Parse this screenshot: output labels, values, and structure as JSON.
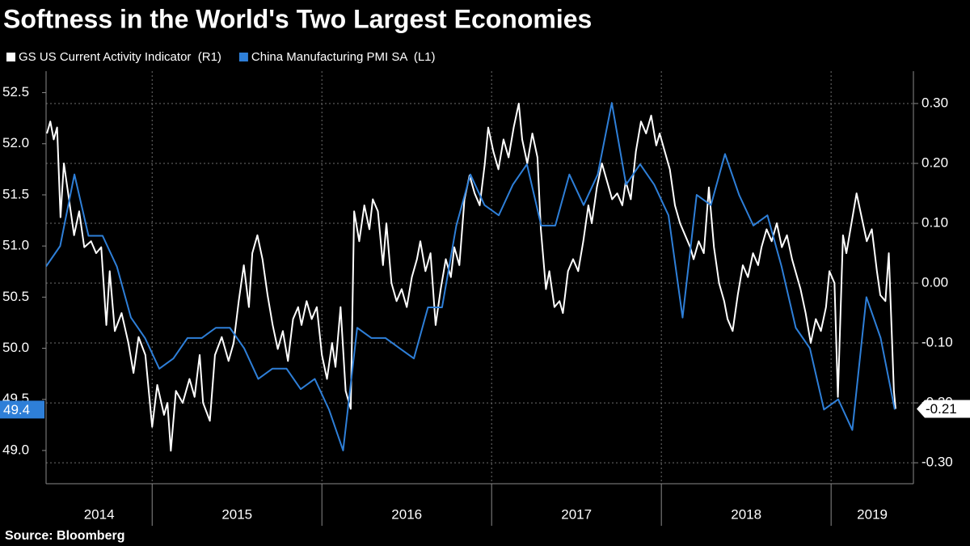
{
  "chart_data": {
    "type": "line",
    "title": "Softness in the World's Two Largest Economies",
    "source": "Source: Bloomberg",
    "xlim": [
      2014.375,
      2019.485
    ],
    "xticks": [
      2014,
      2015,
      2016,
      2017,
      2018,
      2019
    ],
    "ylim": [
      48.675,
      52.71
    ],
    "yticks": [
      {
        "value": 49,
        "label": "49.0"
      },
      49.5,
      {
        "value": 50,
        "label": "50.0"
      },
      50.5,
      {
        "value": 51,
        "label": "51.0"
      },
      51.5,
      {
        "value": 52,
        "label": "52.0"
      },
      52.5
    ],
    "y2lim": [
      -0.335,
      0.354
    ],
    "y2ticks": [
      {
        "value": -0.3,
        "label": "-0.30"
      },
      {
        "value": -0.2,
        "label": "-0.20"
      },
      {
        "value": -0.1,
        "label": "-0.10"
      },
      {
        "value": 0,
        "label": "0.00"
      },
      {
        "value": 0.1,
        "label": "0.10"
      },
      {
        "value": 0.2,
        "label": "0.20"
      },
      {
        "value": 0.3,
        "label": "0.30"
      }
    ],
    "grid": true,
    "series": [
      {
        "name": "GS US Current Activity Indicator  (R1)",
        "color": "#ffffff",
        "axis": "y2",
        "x": [
          2014.38,
          2014.4,
          2014.42,
          2014.44,
          2014.46,
          2014.48,
          2014.51,
          2014.54,
          2014.57,
          2014.6,
          2014.64,
          2014.67,
          2014.7,
          2014.73,
          2014.75,
          2014.78,
          2014.82,
          2014.86,
          2014.89,
          2014.92,
          2014.96,
          2015.0,
          2015.03,
          2015.07,
          2015.09,
          2015.11,
          2015.14,
          2015.18,
          2015.22,
          2015.25,
          2015.28,
          2015.3,
          2015.34,
          2015.37,
          2015.41,
          2015.45,
          2015.48,
          2015.51,
          2015.54,
          2015.57,
          2015.59,
          2015.62,
          2015.65,
          2015.68,
          2015.71,
          2015.74,
          2015.77,
          2015.8,
          2015.83,
          2015.86,
          2015.88,
          2015.91,
          2015.94,
          2015.97,
          2016.0,
          2016.03,
          2016.06,
          2016.08,
          2016.11,
          2016.14,
          2016.17,
          2016.19,
          2016.22,
          2016.25,
          2016.28,
          2016.3,
          2016.33,
          2016.36,
          2016.38,
          2016.41,
          2016.44,
          2016.47,
          2016.5,
          2016.53,
          2016.56,
          2016.58,
          2016.61,
          2016.64,
          2016.67,
          2016.7,
          2016.73,
          2016.76,
          2016.78,
          2016.81,
          2016.84,
          2016.87,
          2016.9,
          2016.93,
          2016.96,
          2016.98,
          2017.01,
          2017.04,
          2017.07,
          2017.1,
          2017.13,
          2017.16,
          2017.18,
          2017.21,
          2017.24,
          2017.27,
          2017.29,
          2017.32,
          2017.34,
          2017.37,
          2017.4,
          2017.42,
          2017.45,
          2017.48,
          2017.51,
          2017.54,
          2017.57,
          2017.59,
          2017.62,
          2017.65,
          2017.68,
          2017.71,
          2017.74,
          2017.77,
          2017.79,
          2017.82,
          2017.85,
          2017.88,
          2017.91,
          2017.94,
          2017.97,
          2017.99,
          2018.02,
          2018.05,
          2018.08,
          2018.11,
          2018.14,
          2018.17,
          2018.19,
          2018.22,
          2018.25,
          2018.28,
          2018.31,
          2018.34,
          2018.37,
          2018.39,
          2018.42,
          2018.45,
          2018.48,
          2018.51,
          2018.54,
          2018.57,
          2018.59,
          2018.62,
          2018.65,
          2018.68,
          2018.71,
          2018.74,
          2018.77,
          2018.79,
          2018.82,
          2018.85,
          2018.88,
          2018.91,
          2018.94,
          2018.97,
          2018.99,
          2019.02,
          2019.04,
          2019.07,
          2019.09,
          2019.12,
          2019.15,
          2019.18,
          2019.21,
          2019.24,
          2019.27,
          2019.29,
          2019.32,
          2019.34,
          2019.37,
          2019.38
        ],
        "values": [
          0.25,
          0.27,
          0.24,
          0.26,
          0.11,
          0.2,
          0.14,
          0.08,
          0.12,
          0.06,
          0.07,
          0.05,
          0.06,
          -0.07,
          0.02,
          -0.08,
          -0.05,
          -0.1,
          -0.15,
          -0.09,
          -0.12,
          -0.24,
          -0.17,
          -0.22,
          -0.2,
          -0.28,
          -0.18,
          -0.2,
          -0.16,
          -0.19,
          -0.12,
          -0.2,
          -0.23,
          -0.12,
          -0.09,
          -0.13,
          -0.1,
          -0.03,
          0.03,
          -0.04,
          0.05,
          0.08,
          0.04,
          -0.02,
          -0.07,
          -0.11,
          -0.08,
          -0.13,
          -0.06,
          -0.04,
          -0.07,
          -0.03,
          -0.06,
          -0.04,
          -0.12,
          -0.16,
          -0.1,
          -0.14,
          -0.04,
          -0.18,
          -0.21,
          0.12,
          0.07,
          0.13,
          0.09,
          0.14,
          0.12,
          0.03,
          0.1,
          0.0,
          -0.03,
          -0.01,
          -0.04,
          0.01,
          0.04,
          0.07,
          0.02,
          0.05,
          -0.07,
          -0.01,
          0.04,
          0.01,
          0.06,
          0.03,
          0.14,
          0.18,
          0.15,
          0.13,
          0.2,
          0.26,
          0.22,
          0.19,
          0.24,
          0.21,
          0.26,
          0.3,
          0.24,
          0.2,
          0.25,
          0.21,
          0.09,
          -0.01,
          0.02,
          -0.04,
          -0.03,
          -0.05,
          0.02,
          0.04,
          0.02,
          0.07,
          0.13,
          0.1,
          0.16,
          0.2,
          0.17,
          0.14,
          0.15,
          0.13,
          0.17,
          0.14,
          0.22,
          0.27,
          0.25,
          0.28,
          0.23,
          0.25,
          0.22,
          0.19,
          0.13,
          0.1,
          0.08,
          0.06,
          0.04,
          0.07,
          0.05,
          0.16,
          0.06,
          0.0,
          -0.03,
          -0.06,
          -0.08,
          -0.02,
          0.03,
          0.01,
          0.05,
          0.03,
          0.06,
          0.09,
          0.07,
          0.1,
          0.06,
          0.08,
          0.04,
          0.02,
          -0.01,
          -0.05,
          -0.1,
          -0.06,
          -0.08,
          -0.04,
          0.02,
          0.0,
          -0.19,
          0.08,
          0.05,
          0.1,
          0.15,
          0.11,
          0.07,
          0.09,
          0.02,
          -0.02,
          -0.03,
          0.05,
          -0.18,
          -0.21
        ]
      },
      {
        "name": "China Manufacturing PMI SA  (L1)",
        "color": "#2e7fd8",
        "axis": "y",
        "x": [
          2014.375,
          2014.458,
          2014.542,
          2014.625,
          2014.708,
          2014.792,
          2014.875,
          2014.958,
          2015.042,
          2015.125,
          2015.208,
          2015.292,
          2015.375,
          2015.458,
          2015.542,
          2015.625,
          2015.708,
          2015.792,
          2015.875,
          2015.958,
          2016.042,
          2016.125,
          2016.208,
          2016.292,
          2016.375,
          2016.458,
          2016.542,
          2016.625,
          2016.708,
          2016.792,
          2016.875,
          2016.958,
          2017.042,
          2017.125,
          2017.208,
          2017.292,
          2017.375,
          2017.458,
          2017.542,
          2017.625,
          2017.708,
          2017.792,
          2017.875,
          2017.958,
          2018.042,
          2018.125,
          2018.208,
          2018.292,
          2018.375,
          2018.458,
          2018.542,
          2018.625,
          2018.708,
          2018.792,
          2018.875,
          2018.958,
          2019.042,
          2019.125,
          2019.208,
          2019.292,
          2019.375
        ],
        "values": [
          50.8,
          51.0,
          51.7,
          51.1,
          51.1,
          50.8,
          50.3,
          50.1,
          49.8,
          49.9,
          50.1,
          50.1,
          50.2,
          50.2,
          50.0,
          49.7,
          49.8,
          49.8,
          49.6,
          49.7,
          49.4,
          49.0,
          50.2,
          50.1,
          50.1,
          50.0,
          49.9,
          50.4,
          50.4,
          51.2,
          51.7,
          51.4,
          51.3,
          51.6,
          51.8,
          51.2,
          51.2,
          51.7,
          51.4,
          51.7,
          52.4,
          51.6,
          51.8,
          51.6,
          51.3,
          50.3,
          51.5,
          51.4,
          51.9,
          51.5,
          51.2,
          51.3,
          50.8,
          50.2,
          50.0,
          49.4,
          49.5,
          49.2,
          50.5,
          50.1,
          49.4
        ]
      }
    ]
  }
}
